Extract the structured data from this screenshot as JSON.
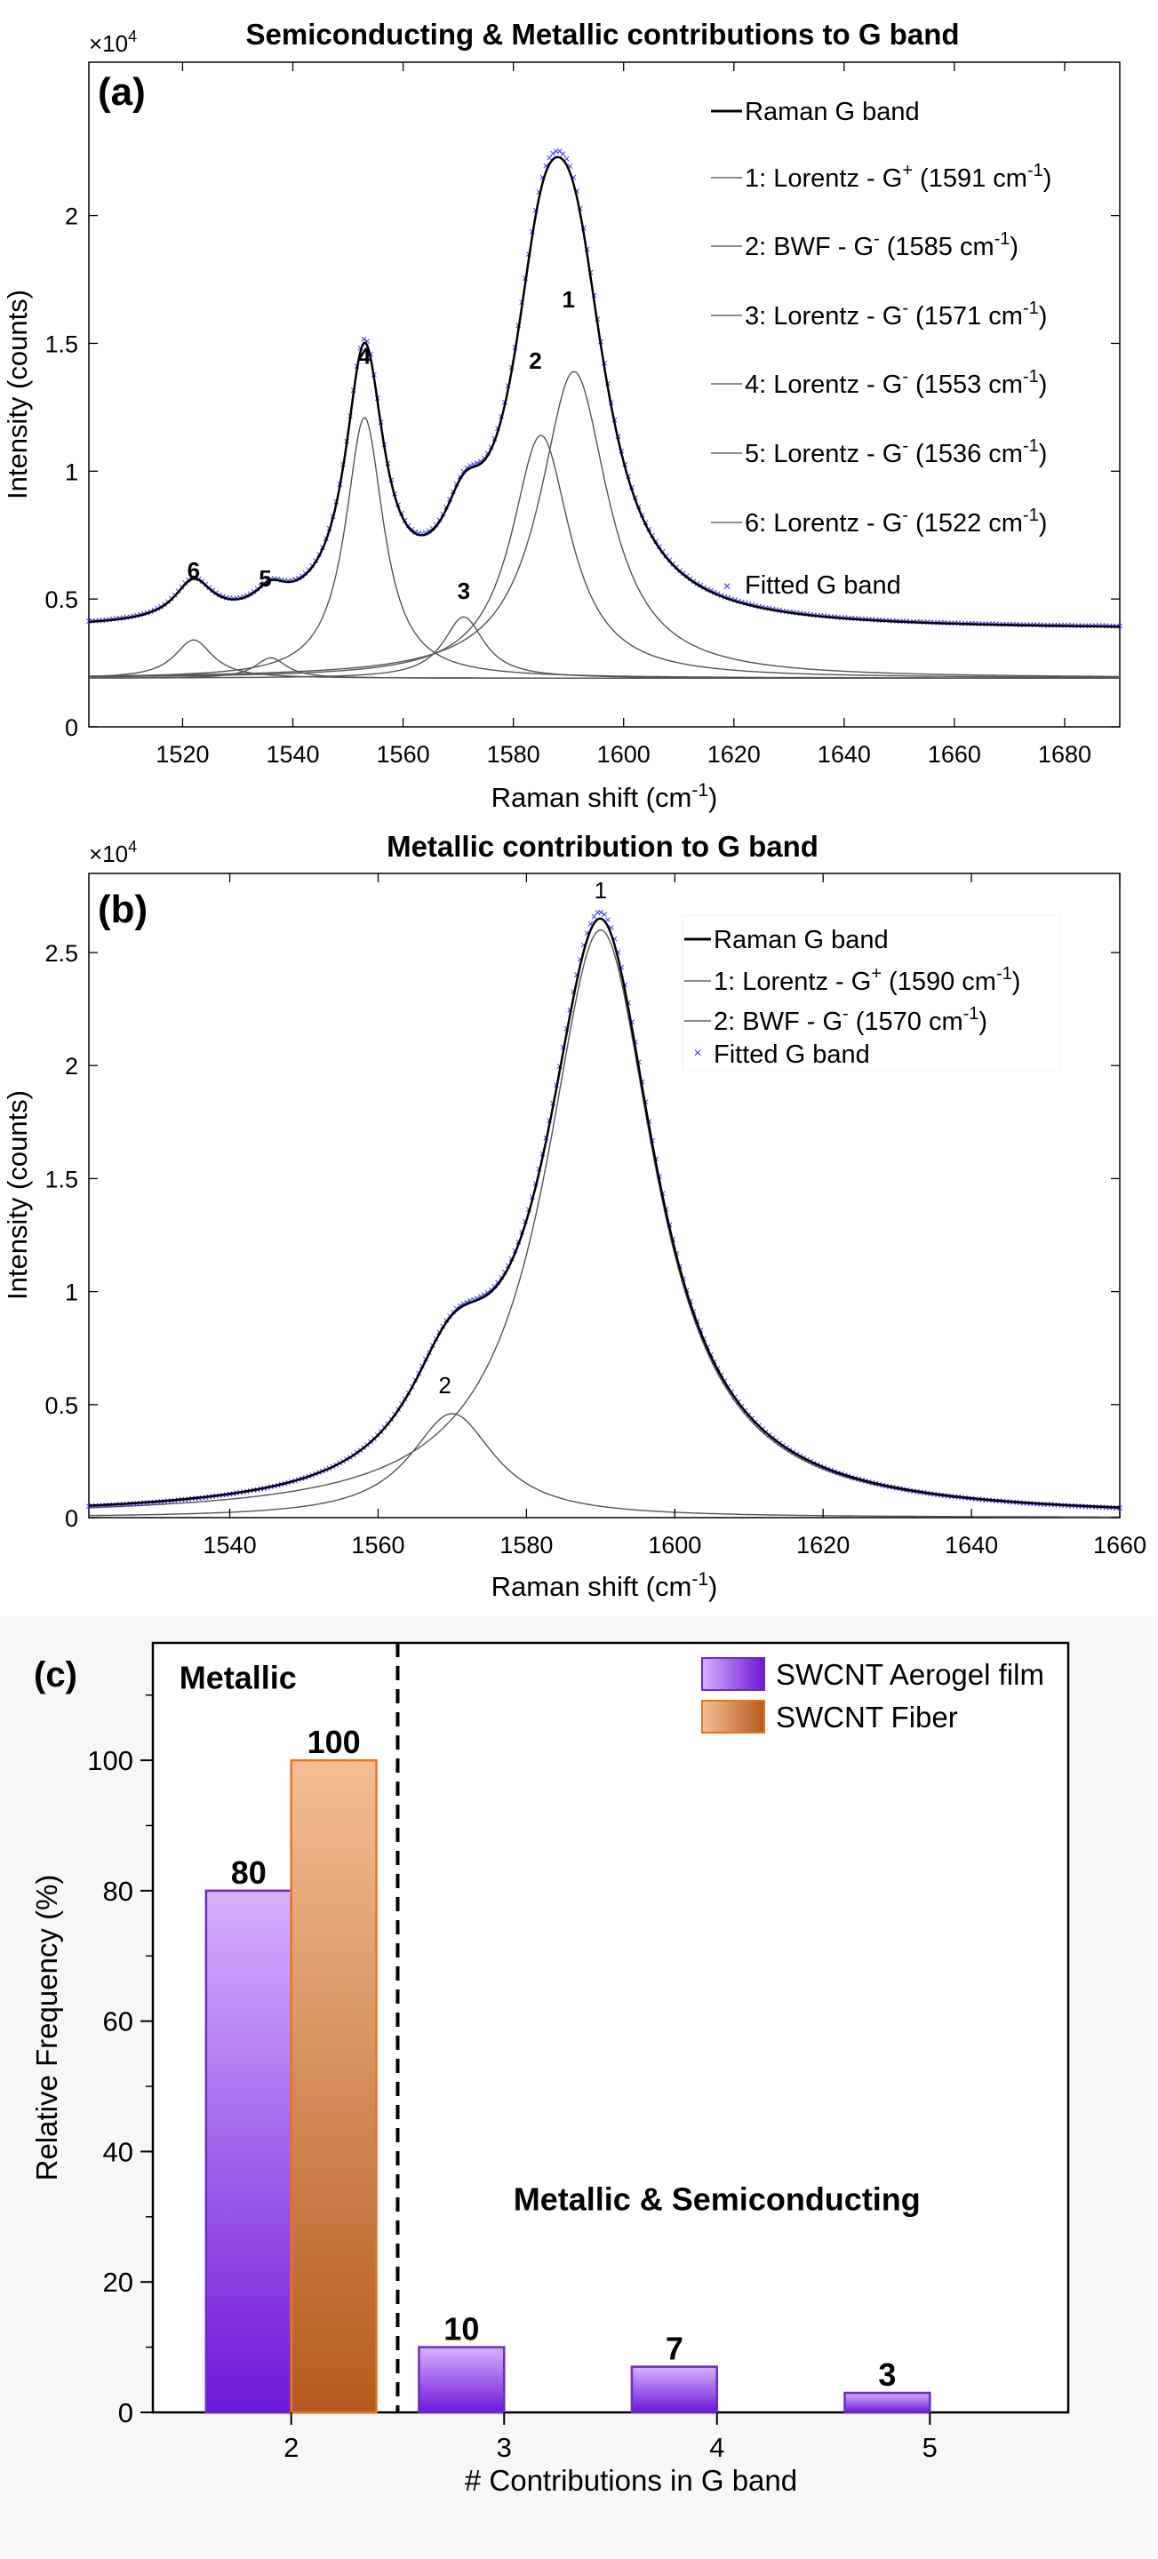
{
  "chart_data": [
    {
      "type": "line",
      "panel": "(a)",
      "title": "Semiconducting & Metallic contributions to G band",
      "xlabel": "Raman shift (cm-1)",
      "ylabel": "Intensity (counts)",
      "exponent_label": "x10^4",
      "xlim": [
        1503,
        1690
      ],
      "ylim": [
        0,
        2.6
      ],
      "xticks": [
        1520,
        1540,
        1560,
        1580,
        1600,
        1620,
        1640,
        1660,
        1680
      ],
      "yticks": [
        0,
        0.5,
        1,
        1.5,
        2
      ],
      "background": 0.38,
      "components": [
        {
          "id": "1",
          "label": "1: Lorentz - G+ (1591 cm-1)",
          "center": 1591,
          "amplitude": 1.2,
          "hwhm": 7.5,
          "peak_label_x": 1590,
          "peak_label_y": 1.64
        },
        {
          "id": "2",
          "label": "2: BWF - G- (1585 cm-1)",
          "center": 1585,
          "amplitude": 0.95,
          "hwhm": 6.5,
          "peak_label_x": 1584,
          "peak_label_y": 1.4
        },
        {
          "id": "3",
          "label": "3: Lorentz - G- (1571 cm-1)",
          "center": 1571,
          "amplitude": 0.24,
          "hwhm": 4.5,
          "peak_label_x": 1571,
          "peak_label_y": 0.5
        },
        {
          "id": "4",
          "label": "4: Lorentz - G- (1553 cm-1)",
          "center": 1553,
          "amplitude": 1.02,
          "hwhm": 4.2,
          "peak_label_x": 1553,
          "peak_label_y": 1.42
        },
        {
          "id": "5",
          "label": "5: Lorentz - G- (1536 cm-1)",
          "center": 1536,
          "amplitude": 0.08,
          "hwhm": 3.5,
          "peak_label_x": 1535,
          "peak_label_y": 0.55
        },
        {
          "id": "6",
          "label": "6: Lorentz - G- (1522 cm-1)",
          "center": 1522,
          "amplitude": 0.15,
          "hwhm": 4.2,
          "peak_label_x": 1522,
          "peak_label_y": 0.58
        }
      ],
      "series": [
        {
          "name": "Raman G band",
          "style": "line",
          "color": "#000000"
        },
        {
          "name": "Fitted G band",
          "style": "markers",
          "color": "#3b3bf5"
        }
      ],
      "legend": {
        "position": "top-right"
      }
    },
    {
      "type": "line",
      "panel": "(b)",
      "title": "Metallic contribution to G band",
      "xlabel": "Raman shift (cm-1)",
      "ylabel": "Intensity (counts)",
      "exponent_label": "x10^4",
      "xlim": [
        1521,
        1660
      ],
      "ylim": [
        0,
        2.85
      ],
      "xticks": [
        1540,
        1560,
        1580,
        1600,
        1620,
        1640,
        1660
      ],
      "yticks": [
        0,
        0.5,
        1,
        1.5,
        2,
        2.5
      ],
      "background": 0,
      "components": [
        {
          "id": "1",
          "label": "1: Lorentz - G+ (1590 cm-1)",
          "center": 1590,
          "amplitude": 2.6,
          "hwhm": 9,
          "peak_label_x": 1590,
          "peak_label_y": 2.74
        },
        {
          "id": "2",
          "label": "2: BWF - G- (1570 cm-1)",
          "center": 1570,
          "amplitude": 0.46,
          "hwhm": 7,
          "peak_label_x": 1569,
          "peak_label_y": 0.55
        }
      ],
      "series": [
        {
          "name": "Raman G band",
          "style": "line",
          "color": "#000000"
        },
        {
          "name": "Fitted G band",
          "style": "markers",
          "color": "#3b3bf5"
        }
      ],
      "legend": {
        "position": "top-right"
      }
    },
    {
      "type": "bar",
      "panel": "(c)",
      "title": "",
      "xlabel": "# Contributions in G band",
      "ylabel": "Relative Frequency (%)",
      "categories": [
        "2",
        "3",
        "4",
        "5"
      ],
      "xlim": [
        1.35,
        5.65
      ],
      "ylim": [
        0,
        118
      ],
      "yticks": [
        0,
        20,
        40,
        60,
        80,
        100
      ],
      "series": [
        {
          "name": "SWCNT Aerogel film",
          "values": [
            80,
            10,
            7,
            3
          ],
          "labels": [
            "80",
            "10",
            "7",
            "3"
          ],
          "top_color": "#d7b0ff",
          "bottom_color": "#6e17d8",
          "edge_color": "#6a2bc0"
        },
        {
          "name": "SWCNT Fiber",
          "values": [
            100,
            0,
            0,
            0
          ],
          "labels": [
            "100",
            "",
            "",
            ""
          ],
          "top_color": "#f5be94",
          "bottom_color": "#b55a1e",
          "edge_color": "#e8751f"
        }
      ],
      "divider_x": 2.5,
      "annotations": [
        {
          "text": "Metallic",
          "x": 1.75,
          "y": 111
        },
        {
          "text": "Metallic & Semiconducting",
          "x": 4.0,
          "y": 31
        }
      ],
      "legend": {
        "position": "top-right"
      }
    }
  ]
}
